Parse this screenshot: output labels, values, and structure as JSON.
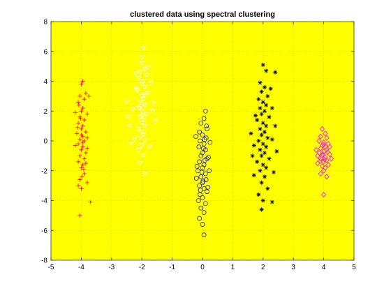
{
  "chart_data": {
    "type": "scatter",
    "title": "clustered data using spectral clustering",
    "xlabel": "",
    "ylabel": "",
    "xlim": [
      -5,
      5
    ],
    "ylim": [
      -8,
      8
    ],
    "xticks": [
      "-5",
      "-4",
      "-3",
      "-2",
      "-1",
      "0",
      "1",
      "2",
      "3",
      "4",
      "5"
    ],
    "yticks": [
      "-8",
      "-6",
      "-4",
      "-2",
      "0",
      "2",
      "4",
      "6",
      "8"
    ],
    "grid": true,
    "background_color": "#ffff00",
    "series": [
      {
        "marker": "plus",
        "color": "#ff0000",
        "points": [
          [
            -3.95,
            4.0
          ],
          [
            -4.0,
            3.8
          ],
          [
            -4.05,
            3.0
          ],
          [
            -3.9,
            2.8
          ],
          [
            -3.85,
            3.2
          ],
          [
            -4.1,
            2.6
          ],
          [
            -3.95,
            2.2
          ],
          [
            -4.0,
            2.0
          ],
          [
            -4.05,
            1.6
          ],
          [
            -3.9,
            1.4
          ],
          [
            -4.1,
            1.2
          ],
          [
            -3.95,
            1.0
          ],
          [
            -4.0,
            0.8
          ],
          [
            -3.85,
            0.6
          ],
          [
            -4.15,
            0.5
          ],
          [
            -3.95,
            0.3
          ],
          [
            -4.05,
            0.1
          ],
          [
            -3.9,
            0.0
          ],
          [
            -4.1,
            -0.2
          ],
          [
            -3.95,
            -0.4
          ],
          [
            -4.0,
            -0.6
          ],
          [
            -3.85,
            -0.8
          ],
          [
            -4.05,
            -1.0
          ],
          [
            -3.9,
            -1.2
          ],
          [
            -4.1,
            -1.4
          ],
          [
            -3.95,
            -1.6
          ],
          [
            -4.0,
            -1.8
          ],
          [
            -3.9,
            -2.2
          ],
          [
            -4.05,
            -2.6
          ],
          [
            -4.1,
            -3.0
          ],
          [
            -4.0,
            -3.2
          ],
          [
            -3.8,
            -2.8
          ],
          [
            -3.85,
            -1.5
          ],
          [
            -3.8,
            -0.5
          ],
          [
            -3.8,
            1.8
          ],
          [
            -3.8,
            0.2
          ],
          [
            -4.2,
            1.9
          ],
          [
            -4.2,
            -0.3
          ],
          [
            -3.7,
            -4.1
          ],
          [
            -4.05,
            -5.0
          ],
          [
            -3.75,
            3.0
          ],
          [
            -4.0,
            0.4
          ],
          [
            -3.95,
            -0.1
          ],
          [
            -4.02,
            1.5
          ],
          [
            -3.92,
            -1.9
          ],
          [
            -4.08,
            2.4
          ],
          [
            -3.98,
            -2.4
          ],
          [
            -4.12,
            0.9
          ]
        ]
      },
      {
        "marker": "triangle-down",
        "color": "#ffffff",
        "points": [
          [
            -1.95,
            6.2
          ],
          [
            -2.0,
            5.2
          ],
          [
            -1.9,
            4.8
          ],
          [
            -2.05,
            4.6
          ],
          [
            -1.85,
            4.4
          ],
          [
            -2.1,
            4.2
          ],
          [
            -1.95,
            4.0
          ],
          [
            -2.0,
            3.8
          ],
          [
            -1.9,
            3.6
          ],
          [
            -2.15,
            3.4
          ],
          [
            -1.8,
            3.2
          ],
          [
            -2.0,
            3.0
          ],
          [
            -1.95,
            2.8
          ],
          [
            -2.05,
            2.6
          ],
          [
            -1.9,
            2.4
          ],
          [
            -2.1,
            2.2
          ],
          [
            -2.0,
            2.0
          ],
          [
            -1.85,
            1.8
          ],
          [
            -2.05,
            1.6
          ],
          [
            -1.95,
            1.4
          ],
          [
            -2.0,
            1.2
          ],
          [
            -1.9,
            1.0
          ],
          [
            -2.1,
            0.8
          ],
          [
            -2.0,
            0.6
          ],
          [
            -1.95,
            0.4
          ],
          [
            -2.05,
            0.2
          ],
          [
            -1.9,
            0.0
          ],
          [
            -2.0,
            -0.3
          ],
          [
            -2.1,
            -0.6
          ],
          [
            -1.95,
            -1.0
          ],
          [
            -2.05,
            -1.5
          ],
          [
            -1.9,
            -2.2
          ],
          [
            -2.3,
            2.1
          ],
          [
            -2.4,
            1.0
          ],
          [
            -2.5,
            2.6
          ],
          [
            -1.6,
            2.5
          ],
          [
            -1.55,
            1.3
          ],
          [
            -1.7,
            3.9
          ],
          [
            -2.2,
            3.5
          ],
          [
            -2.35,
            -0.2
          ],
          [
            -1.75,
            -0.4
          ],
          [
            -2.25,
            0.1
          ],
          [
            -1.65,
            2.0
          ],
          [
            -2.45,
            1.6
          ],
          [
            -2.0,
            5.6
          ],
          [
            -1.8,
            4.9
          ],
          [
            -2.2,
            4.5
          ],
          [
            -1.97,
            1.7
          ],
          [
            -2.03,
            2.3
          ],
          [
            -1.93,
            3.1
          ]
        ]
      },
      {
        "marker": "circle",
        "color": "#1f1fcc",
        "points": [
          [
            0.1,
            2.0
          ],
          [
            0.05,
            1.5
          ],
          [
            -0.05,
            1.2
          ],
          [
            0.15,
            0.8
          ],
          [
            -0.1,
            0.6
          ],
          [
            0.0,
            0.4
          ],
          [
            0.12,
            0.2
          ],
          [
            -0.08,
            0.0
          ],
          [
            0.05,
            -0.2
          ],
          [
            -0.12,
            -0.4
          ],
          [
            0.1,
            -0.6
          ],
          [
            0.0,
            -0.8
          ],
          [
            -0.05,
            -1.0
          ],
          [
            0.15,
            -1.2
          ],
          [
            -0.1,
            -1.4
          ],
          [
            0.05,
            -1.6
          ],
          [
            0.0,
            -1.8
          ],
          [
            -0.15,
            -2.0
          ],
          [
            0.1,
            -2.2
          ],
          [
            -0.05,
            -2.4
          ],
          [
            0.12,
            -2.6
          ],
          [
            0.0,
            -2.8
          ],
          [
            -0.1,
            -3.0
          ],
          [
            0.05,
            -3.2
          ],
          [
            0.15,
            -3.4
          ],
          [
            -0.08,
            -3.6
          ],
          [
            0.0,
            -3.8
          ],
          [
            0.1,
            -4.2
          ],
          [
            -0.05,
            -4.5
          ],
          [
            0.05,
            -4.8
          ],
          [
            -0.1,
            -5.2
          ],
          [
            0.0,
            -5.6
          ],
          [
            0.05,
            -6.3
          ],
          [
            0.2,
            -1.1
          ],
          [
            -0.2,
            -2.5
          ],
          [
            0.25,
            -0.1
          ],
          [
            -0.22,
            0.3
          ],
          [
            0.18,
            -3.1
          ],
          [
            -0.18,
            -1.7
          ],
          [
            0.22,
            -2.0
          ],
          [
            0.08,
            -1.3
          ],
          [
            -0.02,
            -2.1
          ],
          [
            0.03,
            -0.5
          ],
          [
            -0.07,
            -3.3
          ],
          [
            0.13,
            1.0
          ],
          [
            -0.13,
            -4.0
          ],
          [
            0.02,
            -2.7
          ],
          [
            0.07,
            0.1
          ]
        ]
      },
      {
        "marker": "asterisk",
        "color": "#000000",
        "points": [
          [
            2.0,
            5.1
          ],
          [
            2.1,
            4.7
          ],
          [
            1.9,
            3.9
          ],
          [
            2.05,
            3.6
          ],
          [
            1.95,
            3.3
          ],
          [
            2.15,
            3.0
          ],
          [
            1.85,
            2.8
          ],
          [
            2.0,
            2.6
          ],
          [
            2.1,
            2.4
          ],
          [
            1.9,
            2.2
          ],
          [
            2.05,
            2.0
          ],
          [
            1.95,
            1.8
          ],
          [
            2.2,
            1.6
          ],
          [
            1.8,
            1.4
          ],
          [
            2.0,
            1.2
          ],
          [
            2.1,
            1.0
          ],
          [
            1.9,
            0.8
          ],
          [
            2.05,
            0.6
          ],
          [
            1.95,
            0.4
          ],
          [
            2.15,
            0.2
          ],
          [
            1.85,
            0.0
          ],
          [
            2.0,
            -0.2
          ],
          [
            2.1,
            -0.4
          ],
          [
            1.9,
            -0.6
          ],
          [
            2.05,
            -0.8
          ],
          [
            1.95,
            -1.0
          ],
          [
            2.2,
            -1.2
          ],
          [
            1.8,
            -1.4
          ],
          [
            2.0,
            -1.6
          ],
          [
            2.1,
            -1.8
          ],
          [
            1.9,
            -2.0
          ],
          [
            2.05,
            -2.4
          ],
          [
            1.95,
            -2.8
          ],
          [
            2.15,
            -3.2
          ],
          [
            1.85,
            -3.6
          ],
          [
            2.0,
            -4.0
          ],
          [
            1.95,
            -4.6
          ],
          [
            2.4,
            1.0
          ],
          [
            2.45,
            -0.7
          ],
          [
            1.6,
            0.5
          ],
          [
            1.65,
            -1.0
          ],
          [
            2.3,
            2.2
          ],
          [
            2.35,
            -2.1
          ],
          [
            1.7,
            -2.3
          ],
          [
            2.25,
            3.5
          ],
          [
            1.75,
            1.7
          ],
          [
            2.3,
            -4.1
          ],
          [
            2.4,
            4.6
          ],
          [
            2.3,
            0.1
          ],
          [
            1.7,
            -0.3
          ]
        ]
      },
      {
        "marker": "diamond",
        "color": "#ff00ff",
        "points": [
          [
            3.95,
            0.8
          ],
          [
            4.05,
            0.5
          ],
          [
            3.9,
            0.3
          ],
          [
            4.1,
            0.2
          ],
          [
            3.85,
            0.0
          ],
          [
            4.0,
            -0.1
          ],
          [
            4.15,
            -0.2
          ],
          [
            3.95,
            -0.3
          ],
          [
            4.05,
            -0.4
          ],
          [
            3.9,
            -0.5
          ],
          [
            4.1,
            -0.6
          ],
          [
            4.0,
            -0.7
          ],
          [
            3.85,
            -0.8
          ],
          [
            4.2,
            -0.9
          ],
          [
            3.95,
            -1.0
          ],
          [
            4.05,
            -1.1
          ],
          [
            3.9,
            -1.2
          ],
          [
            4.1,
            -1.3
          ],
          [
            4.0,
            -1.4
          ],
          [
            3.8,
            -1.5
          ],
          [
            4.15,
            -1.6
          ],
          [
            3.95,
            -1.7
          ],
          [
            4.05,
            -1.8
          ],
          [
            4.0,
            -2.0
          ],
          [
            3.9,
            -2.2
          ],
          [
            4.1,
            -2.4
          ],
          [
            4.0,
            -3.6
          ],
          [
            3.75,
            -0.6
          ],
          [
            4.25,
            -1.2
          ],
          [
            3.8,
            -1.0
          ],
          [
            4.2,
            -0.4
          ],
          [
            3.97,
            -0.9
          ],
          [
            4.03,
            -1.25
          ],
          [
            4.12,
            -0.75
          ],
          [
            3.88,
            -1.35
          ],
          [
            4.0,
            -0.25
          ]
        ]
      }
    ]
  }
}
